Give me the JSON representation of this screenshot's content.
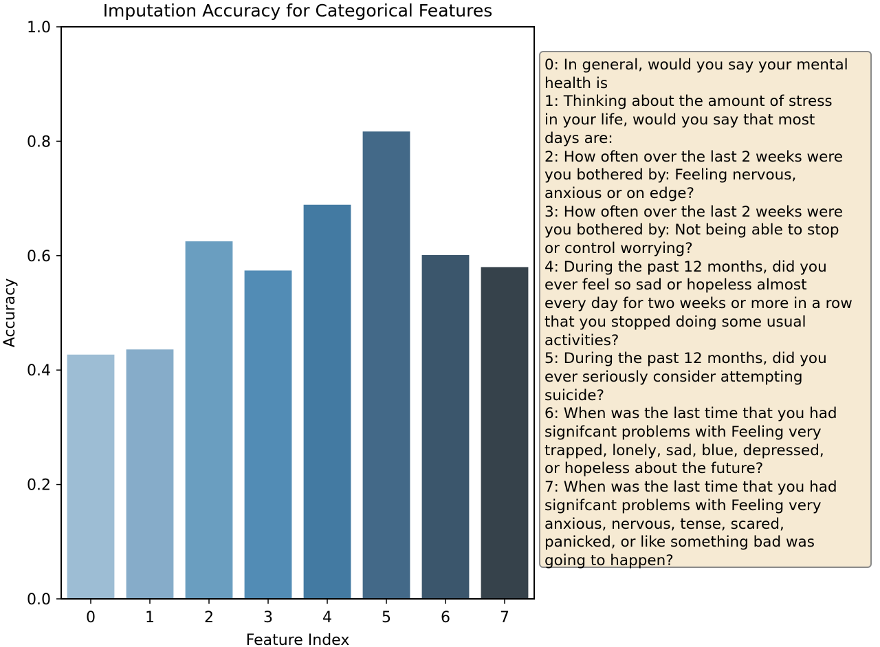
{
  "chart_data": {
    "type": "bar",
    "title": "Imputation Accuracy for Categorical Features",
    "xlabel": "Feature Index",
    "ylabel": "Accuracy",
    "categories": [
      "0",
      "1",
      "2",
      "3",
      "4",
      "5",
      "6",
      "7"
    ],
    "values": [
      0.427,
      0.436,
      0.625,
      0.574,
      0.689,
      0.817,
      0.601,
      0.58
    ],
    "ylim": [
      0,
      1.0
    ],
    "yticks": [
      "0.0",
      "0.2",
      "0.4",
      "0.6",
      "0.8",
      "1.0"
    ],
    "colors": [
      "#9dbdd4",
      "#86acc9",
      "#6a9ec0",
      "#528cb5",
      "#437aa2",
      "#436988",
      "#3b566c",
      "#36424b"
    ],
    "grid": false,
    "legend_placement": "right",
    "legend_lines": [
      "0: In general, would you say your mental",
      "health is",
      "1: Thinking about the amount of stress",
      "in your life, would you say that most",
      "days are:",
      "2: How often over the last 2 weeks were",
      "you bothered by: Feeling nervous,",
      "anxious or on edge?",
      "3: How often over the last 2 weeks were",
      "you bothered by: Not being able to stop",
      "or control worrying?",
      "4: During the past 12 months, did you",
      "ever feel so sad or hopeless almost",
      "every day for two weeks or more in a row",
      "that you stopped doing some usual",
      "activities?",
      "5: During the past 12 months, did you",
      "ever seriously consider attempting",
      "suicide?",
      "6: When was the last time that you had",
      "signifcant problems with Feeling very",
      "trapped, lonely, sad, blue, depressed,",
      "or hopeless about the future?",
      "7: When was the last time that you had",
      "signifcant problems with Feeling very",
      "anxious, nervous, tense, scared,",
      "panicked, or like something bad was",
      "going to happen?"
    ],
    "legend_bg": "#f6ead3"
  }
}
